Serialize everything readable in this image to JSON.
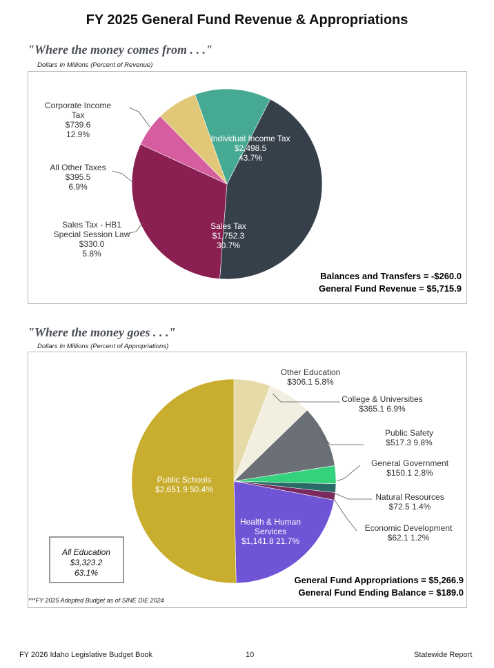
{
  "page_title": "FY 2025 General Fund Revenue & Appropriations",
  "footer": {
    "left": "FY 2026 Idaho Legislative Budget Book",
    "center": "10",
    "right": "Statewide Report"
  },
  "chart_data": [
    {
      "type": "pie",
      "title": "\"Where the money comes from . . .\"",
      "subtitle": "Dollars In Millions (Percent of Revenue)",
      "slices": [
        {
          "label_lines": [
            "Individual Income Tax"
          ],
          "amount": "$2,498.5",
          "percent": "43.7%",
          "value": 2498.5,
          "pct": 43.7,
          "color": "#36404a",
          "text_color": "#ffffff"
        },
        {
          "label_lines": [
            "Sales Tax"
          ],
          "amount": "$1,752.3",
          "percent": "30.7%",
          "value": 1752.3,
          "pct": 30.7,
          "color": "#8a2052",
          "text_color": "#ffffff"
        },
        {
          "label_lines": [
            "Sales Tax - HB1",
            "Special Session Law"
          ],
          "amount": "$330.0",
          "percent": "5.8%",
          "value": 330.0,
          "pct": 5.8,
          "color": "#d65d9f",
          "text_color": "#333333"
        },
        {
          "label_lines": [
            "All Other Taxes"
          ],
          "amount": "$395.5",
          "percent": "6.9%",
          "value": 395.5,
          "pct": 6.9,
          "color": "#e0c878",
          "text_color": "#333333"
        },
        {
          "label_lines": [
            "Corporate Income",
            "Tax"
          ],
          "amount": "$739.6",
          "percent": "12.9%",
          "value": 739.6,
          "pct": 12.9,
          "color": "#45a994",
          "text_color": "#333333"
        }
      ],
      "notes": [
        "Balances and Transfers = -$260.0",
        "General Fund Revenue = $5,715.9"
      ]
    },
    {
      "type": "pie",
      "title": "\"Where the money goes . . .\"",
      "subtitle": "Dollars In Millions (Percent of Appropriations)",
      "slices": [
        {
          "label": "Other Education",
          "amount": "$306.1",
          "percent": "5.8%",
          "value": 306.1,
          "pct": 5.8,
          "color": "#e6dba8",
          "text_color": "#333333"
        },
        {
          "label": "College & Universities",
          "amount": "$365.1",
          "percent": "6.9%",
          "value": 365.1,
          "pct": 6.9,
          "color": "#f2efe0",
          "text_color": "#333333"
        },
        {
          "label": "Public Safety",
          "amount": "$517.3",
          "percent": "9.8%",
          "value": 517.3,
          "pct": 9.8,
          "color": "#6b6f76",
          "text_color": "#333333"
        },
        {
          "label": "General Government",
          "amount": "$150.1",
          "percent": "2.8%",
          "value": 150.1,
          "pct": 2.8,
          "color": "#34d27c",
          "text_color": "#333333"
        },
        {
          "label": "Natural Resources",
          "amount": "$72.5",
          "percent": "1.4%",
          "value": 72.5,
          "pct": 1.4,
          "color": "#2a6b67",
          "text_color": "#333333"
        },
        {
          "label": "Economic Development",
          "amount": "$62.1",
          "percent": "1.2%",
          "value": 62.1,
          "pct": 1.2,
          "color": "#7a2a5c",
          "text_color": "#333333"
        },
        {
          "label_lines": [
            "Health & Human",
            "Services"
          ],
          "amount": "$1,141.8",
          "percent": "21.7%",
          "value": 1141.8,
          "pct": 21.7,
          "color": "#6f54d6",
          "text_color": "#ffffff"
        },
        {
          "label": "Public Schools",
          "amount": "$2,651.9",
          "percent": "50.4%",
          "value": 2651.9,
          "pct": 50.4,
          "color": "#c9ad2f",
          "text_color": "#ffffff"
        }
      ],
      "callout": {
        "label": "All Education",
        "amount": "$3,323.2",
        "percent": "63.1%"
      },
      "notes": [
        "General Fund Appropriations = $5,266.9",
        "General Fund Ending Balance = $189.0"
      ],
      "footnote": "***FY 2025 Adopted Budget as of SINE DIE 2024"
    }
  ]
}
